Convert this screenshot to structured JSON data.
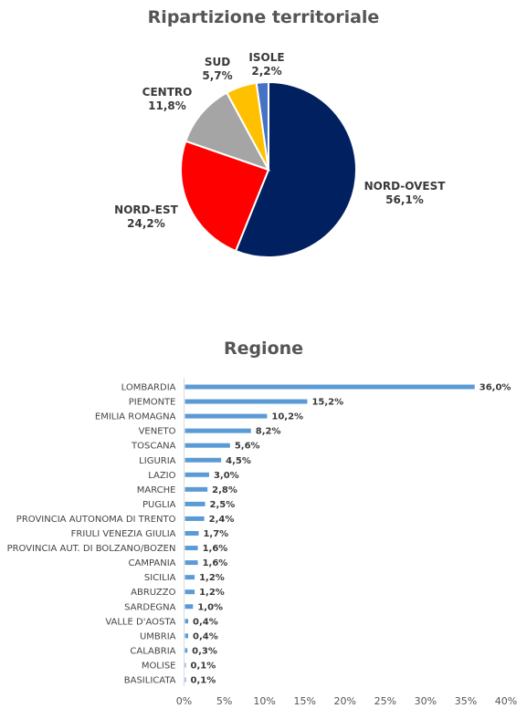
{
  "chart_data": [
    {
      "type": "pie",
      "title": "Ripartizione territoriale",
      "slices": [
        {
          "label": "NORD-OVEST",
          "value": 56.1,
          "value_label": "56,1%",
          "color": "#002060"
        },
        {
          "label": "NORD-EST",
          "value": 24.2,
          "value_label": "24,2%",
          "color": "#FF0000"
        },
        {
          "label": "CENTRO",
          "value": 11.8,
          "value_label": "11,8%",
          "color": "#A5A5A5"
        },
        {
          "label": "SUD",
          "value": 5.7,
          "value_label": "5,7%",
          "color": "#FFC000"
        },
        {
          "label": "ISOLE",
          "value": 2.2,
          "value_label": "2,2%",
          "color": "#4472C4"
        }
      ]
    },
    {
      "type": "bar",
      "orientation": "horizontal",
      "title": "Regione",
      "bar_color": "#5B9BD5",
      "categories": [
        "LOMBARDIA",
        "PIEMONTE",
        "EMILIA ROMAGNA",
        "VENETO",
        "TOSCANA",
        "LIGURIA",
        "LAZIO",
        "MARCHE",
        "PUGLIA",
        "PROVINCIA AUTONOMA DI TRENTO",
        "FRIULI VENEZIA GIULIA",
        "PROVINCIA AUT. DI BOLZANO/BOZEN",
        "CAMPANIA",
        "SICILIA",
        "ABRUZZO",
        "SARDEGNA",
        "VALLE D'AOSTA",
        "UMBRIA",
        "CALABRIA",
        "MOLISE",
        "BASILICATA"
      ],
      "values": [
        36.0,
        15.2,
        10.2,
        8.2,
        5.6,
        4.5,
        3.0,
        2.8,
        2.5,
        2.4,
        1.7,
        1.6,
        1.6,
        1.2,
        1.2,
        1.0,
        0.4,
        0.4,
        0.3,
        0.1,
        0.1
      ],
      "value_labels": [
        "36,0%",
        "15,2%",
        "10,2%",
        "8,2%",
        "5,6%",
        "4,5%",
        "3,0%",
        "2,8%",
        "2,5%",
        "2,4%",
        "1,7%",
        "1,6%",
        "1,6%",
        "1,2%",
        "1,2%",
        "1,0%",
        "0,4%",
        "0,4%",
        "0,3%",
        "0,1%",
        "0,1%"
      ],
      "xlim": [
        0,
        40
      ],
      "x_ticks": [
        "0%",
        "5%",
        "10%",
        "15%",
        "20%",
        "25%",
        "30%",
        "35%",
        "40%"
      ]
    }
  ]
}
